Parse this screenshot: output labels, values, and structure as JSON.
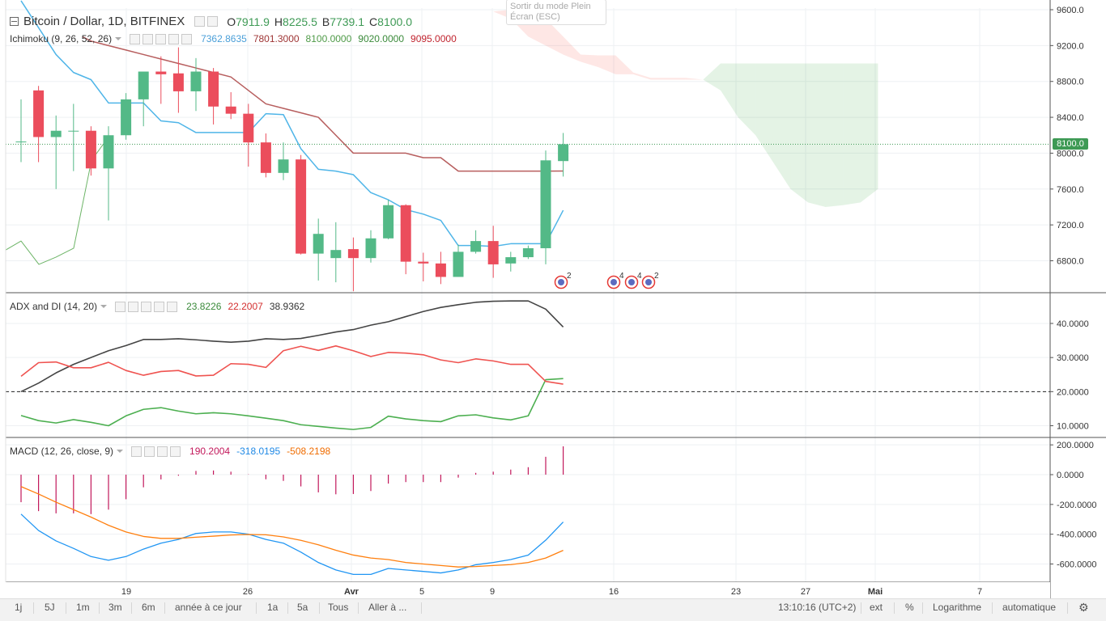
{
  "main_legend": {
    "symbol": "Bitcoin / Dollar, 1D, BITFINEX",
    "open_label": "O",
    "open": "7911.9",
    "high_label": "H",
    "high": "8225.5",
    "low_label": "B",
    "low": "7739.1",
    "close_label": "C",
    "close": "8100.0"
  },
  "tooltip": {
    "line1": "Sortir du mode Plein",
    "line2": "Écran (ESC)"
  },
  "ichimoku": {
    "title": "Ichimoku (9, 26, 52, 26)",
    "v1": "7362.8635",
    "v2": "7801.3000",
    "v3": "8100.0000",
    "v4": "9020.0000",
    "v5": "9095.0000"
  },
  "adx": {
    "title": "ADX and DI (14, 20)",
    "plus_di": "23.8226",
    "minus_di": "22.2007",
    "adx": "38.9362"
  },
  "macd": {
    "title": "MACD (12, 26, close, 9)",
    "hist": "190.2004",
    "macd": "-318.0195",
    "signal": "-508.2198"
  },
  "current_price_tag": "8100.0",
  "colors": {
    "up": "#53b987",
    "down": "#eb4d5c",
    "tenkan": "#4fb5e8",
    "kijun": "#b75e5e",
    "chikou": "#6cb466",
    "adx": "#444444",
    "plus_di": "#4caf50",
    "minus_di": "#ef5350",
    "macd": "#2196f3",
    "signal": "#ff7f0e",
    "hist": "#c2185b"
  },
  "price_axis_labels": [
    "9600.0",
    "9200.0",
    "8800.0",
    "8400.0",
    "8000.0",
    "7600.0",
    "7200.0",
    "6800.0"
  ],
  "adx_axis_labels": [
    "40.0000",
    "30.0000",
    "20.0000",
    "10.0000"
  ],
  "macd_axis_labels": [
    "200.0000",
    "0.0000",
    "-200.0000",
    "-400.0000",
    "-600.0000"
  ],
  "date_labels": [
    "19",
    "26",
    "Avr",
    "5",
    "9",
    "16",
    "23",
    "27",
    "Mai",
    "7"
  ],
  "event_badges": [
    "2",
    "4",
    "4",
    "2"
  ],
  "bottom_bar": {
    "periods": [
      "1j",
      "5J",
      "1m",
      "3m",
      "6m",
      "année à ce jour",
      "1a",
      "5a",
      "Tous"
    ],
    "goto": "Aller à ...",
    "time": "13:10:16 (UTC+2)",
    "ext": "ext",
    "percent": "%",
    "log": "Logarithme",
    "auto": "automatique",
    "settings_icon": "gear-icon"
  },
  "chart_data": [
    {
      "type": "candlestick",
      "title": "Bitcoin / Dollar, 1D, BITFINEX",
      "x_labels": [
        "19",
        "26",
        "Avr",
        "5",
        "9"
      ],
      "ylim": [
        6450,
        9650
      ],
      "candles": [
        {
          "o": 8130,
          "h": 8600,
          "l": 7900,
          "c": 8130
        },
        {
          "o": 8700,
          "h": 8750,
          "l": 7900,
          "c": 8180
        },
        {
          "o": 8180,
          "h": 8420,
          "l": 7600,
          "c": 8250
        },
        {
          "o": 8250,
          "h": 8550,
          "l": 7800,
          "c": 8250
        },
        {
          "o": 8250,
          "h": 8300,
          "l": 7750,
          "c": 7830
        },
        {
          "o": 7830,
          "h": 8300,
          "l": 7250,
          "c": 8200
        },
        {
          "o": 8200,
          "h": 8670,
          "l": 8150,
          "c": 8600
        },
        {
          "o": 8600,
          "h": 8890,
          "l": 8300,
          "c": 8910
        },
        {
          "o": 8910,
          "h": 9080,
          "l": 8550,
          "c": 8880
        },
        {
          "o": 8890,
          "h": 9180,
          "l": 8450,
          "c": 8690
        },
        {
          "o": 8690,
          "h": 9060,
          "l": 8470,
          "c": 8910
        },
        {
          "o": 8910,
          "h": 8950,
          "l": 8320,
          "c": 8520
        },
        {
          "o": 8520,
          "h": 8680,
          "l": 8380,
          "c": 8440
        },
        {
          "o": 8440,
          "h": 8550,
          "l": 7850,
          "c": 8120
        },
        {
          "o": 8120,
          "h": 8220,
          "l": 7730,
          "c": 7780
        },
        {
          "o": 7780,
          "h": 8120,
          "l": 7700,
          "c": 7930
        },
        {
          "o": 7930,
          "h": 7980,
          "l": 6870,
          "c": 6880
        },
        {
          "o": 6880,
          "h": 7270,
          "l": 6580,
          "c": 7100
        },
        {
          "o": 6830,
          "h": 7230,
          "l": 6560,
          "c": 6920
        },
        {
          "o": 6930,
          "h": 7060,
          "l": 6460,
          "c": 6830
        },
        {
          "o": 6830,
          "h": 7140,
          "l": 6780,
          "c": 7050
        },
        {
          "o": 7050,
          "h": 7480,
          "l": 7040,
          "c": 7420
        },
        {
          "o": 7420,
          "h": 7430,
          "l": 6650,
          "c": 6790
        },
        {
          "o": 6790,
          "h": 6890,
          "l": 6570,
          "c": 6770
        },
        {
          "o": 6770,
          "h": 6900,
          "l": 6540,
          "c": 6620
        },
        {
          "o": 6620,
          "h": 6980,
          "l": 6620,
          "c": 6900
        },
        {
          "o": 6900,
          "h": 7140,
          "l": 6880,
          "c": 7020
        },
        {
          "o": 7020,
          "h": 7190,
          "l": 6610,
          "c": 6760
        },
        {
          "o": 6770,
          "h": 6900,
          "l": 6680,
          "c": 6840
        },
        {
          "o": 6840,
          "h": 6970,
          "l": 6820,
          "c": 6940
        },
        {
          "o": 6940,
          "h": 8030,
          "l": 6760,
          "c": 7920
        },
        {
          "o": 7911.9,
          "h": 8225.5,
          "l": 7739.1,
          "c": 8100.0
        }
      ],
      "tenkan": [
        9700,
        9400,
        9100,
        8900,
        8820,
        8560,
        8560,
        8560,
        8360,
        8340,
        8230,
        8230,
        8230,
        8230,
        8440,
        8430,
        8050,
        7820,
        7800,
        7760,
        7560,
        7480,
        7370,
        7320,
        7250,
        6970,
        6970,
        6960,
        6990,
        6990,
        6990,
        7362.86
      ],
      "kijun_x": [
        3.5,
        4,
        5,
        6,
        7,
        8,
        9,
        10,
        11,
        12,
        13,
        14,
        15,
        16,
        17,
        18,
        19,
        20,
        21,
        22,
        23,
        24,
        25,
        26,
        27,
        28,
        29,
        30,
        31
      ],
      "kijun": [
        9300,
        9250,
        9200,
        9150,
        9100,
        9050,
        9000,
        8950,
        8900,
        8850,
        8700,
        8550,
        8500,
        8450,
        8400,
        8200,
        8000,
        8000,
        8000,
        8000,
        7950,
        7950,
        7800,
        7800,
        7800,
        7800,
        7800,
        7800,
        7801.3
      ],
      "chikou_x": [
        0,
        1,
        2,
        3,
        4,
        5
      ],
      "chikou": [
        6900,
        7020,
        6760,
        6840,
        6940,
        7920
      ],
      "cloud_span_a": [
        9580,
        9500,
        9300,
        9200,
        9100,
        9020,
        8960,
        8880,
        8880,
        8820,
        8820,
        8820,
        8820,
        9000,
        9000,
        9000,
        9000,
        9000,
        9000,
        9000,
        9000,
        9000,
        9000
      ],
      "cloud_span_b": [
        9580,
        9600,
        9600,
        9500,
        9300,
        9100,
        9090,
        9090,
        8900,
        8840,
        8840,
        8840,
        8820,
        8700,
        8400,
        8200,
        7900,
        7600,
        7450,
        7400,
        7420,
        7450,
        7600
      ],
      "cloud_x_start": 27,
      "last_price": 8100.0
    },
    {
      "type": "line",
      "title": "ADX and DI (14, 20)",
      "ylim": [
        5,
        49
      ],
      "threshold": 20,
      "series": [
        {
          "name": "ADX",
          "values": [
            20,
            22.5,
            25.5,
            28,
            30,
            32,
            33.5,
            35.3,
            35.3,
            35.5,
            35.2,
            34.8,
            34.5,
            34.8,
            35.5,
            35.3,
            35.6,
            36.5,
            37.5,
            38.2,
            39.5,
            40.5,
            42,
            43.5,
            44.7,
            45.5,
            46.2,
            46.5,
            46.6,
            46.6,
            44.2,
            38.94
          ]
        },
        {
          "name": "+DI",
          "values": [
            13,
            11.5,
            10.8,
            11.8,
            11,
            10,
            12.9,
            14.8,
            15.3,
            14.3,
            13.5,
            13.8,
            13.5,
            12.9,
            12.2,
            11.5,
            10.3,
            9.8,
            9.3,
            8.9,
            9.5,
            12.8,
            12,
            11.5,
            11.2,
            12.9,
            13.2,
            12.3,
            11.7,
            12.9,
            23.5,
            23.82
          ]
        },
        {
          "name": "-DI",
          "values": [
            24.5,
            28.5,
            28.7,
            27,
            27,
            28.6,
            26.2,
            24.8,
            25.9,
            26.2,
            24.6,
            24.8,
            28.2,
            28,
            27.1,
            32,
            33.3,
            32.1,
            33.4,
            32,
            30.3,
            31.5,
            31.3,
            30.8,
            29.3,
            28.5,
            29.6,
            29,
            28,
            28,
            23,
            22.2
          ]
        }
      ]
    },
    {
      "type": "line",
      "title": "MACD (12, 26, close, 9)",
      "ylim": [
        -720,
        215
      ],
      "series": [
        {
          "name": "MACD",
          "values": [
            -265,
            -375,
            -445,
            -495,
            -550,
            -575,
            -550,
            -500,
            -460,
            -435,
            -395,
            -385,
            -385,
            -400,
            -435,
            -460,
            -520,
            -590,
            -640,
            -670,
            -670,
            -630,
            -640,
            -650,
            -660,
            -640,
            -605,
            -590,
            -570,
            -540,
            -440,
            -318.02
          ]
        },
        {
          "name": "Signal",
          "values": [
            -80,
            -130,
            -185,
            -235,
            -285,
            -340,
            -385,
            -415,
            -428,
            -428,
            -420,
            -413,
            -405,
            -402,
            -404,
            -418,
            -441,
            -471,
            -508,
            -540,
            -560,
            -570,
            -590,
            -600,
            -610,
            -620,
            -617,
            -610,
            -604,
            -590,
            -560,
            -508.22
          ]
        },
        {
          "name": "Histogram",
          "values": [
            -185,
            -245,
            -260,
            -260,
            -265,
            -235,
            -165,
            -85,
            -32,
            -7,
            25,
            28,
            20,
            2,
            -31,
            -42,
            -79,
            -119,
            -132,
            -130,
            -110,
            -60,
            -50,
            -50,
            -50,
            -20,
            12,
            20,
            34,
            50,
            120,
            190.2
          ]
        }
      ]
    }
  ]
}
